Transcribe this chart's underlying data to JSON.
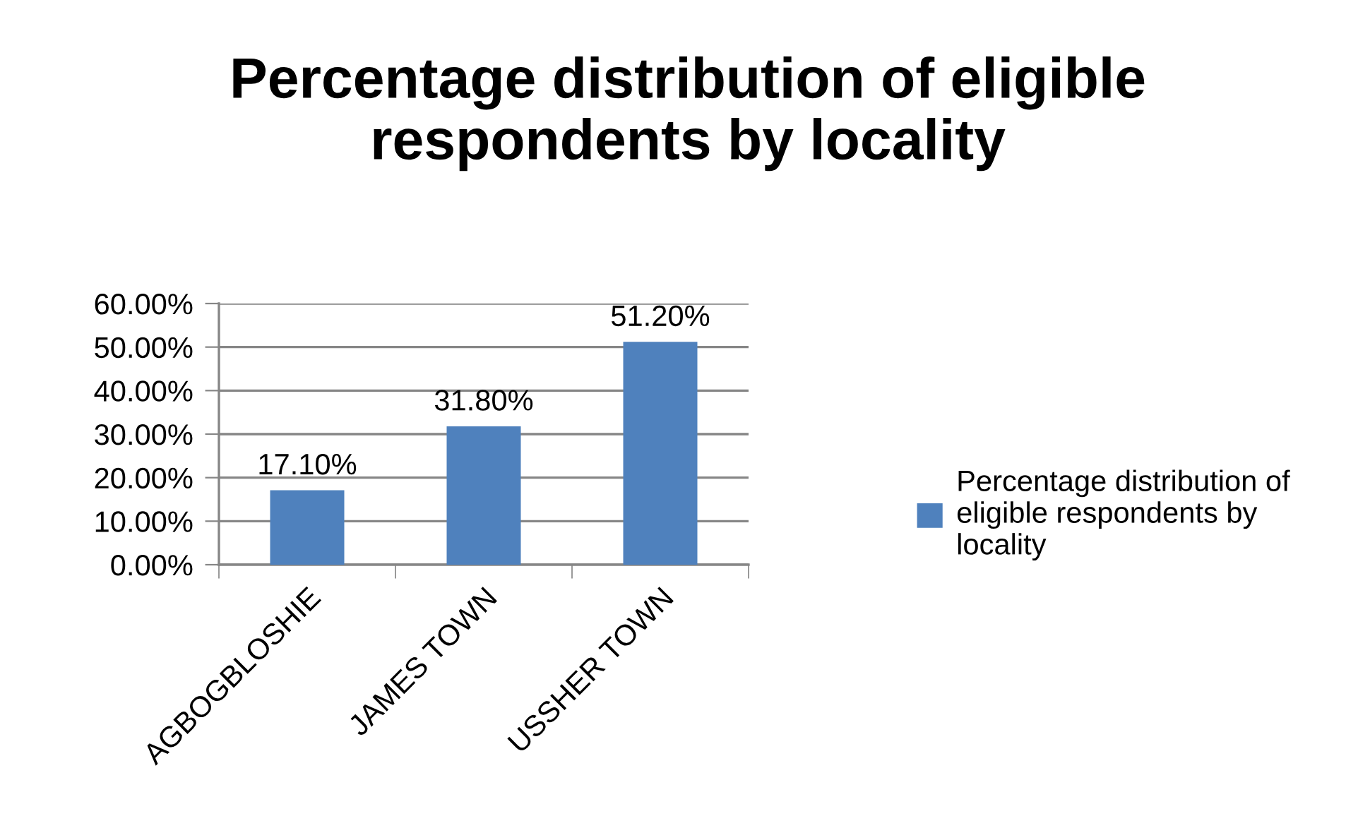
{
  "chart_data": {
    "type": "bar",
    "title": "Percentage distribution of eligible respondents by locality",
    "categories": [
      "AGBOGBLOSHIE",
      "JAMES TOWN",
      "USSHER TOWN"
    ],
    "series": [
      {
        "name": "Percentage distribution of eligible respondents by locality",
        "color": "#4f81bd",
        "values": [
          17.1,
          31.8,
          51.2
        ],
        "value_labels": [
          "17.10%",
          "31.80%",
          "51.20%"
        ]
      }
    ],
    "ylim": [
      0,
      60
    ],
    "yticks": [
      {
        "value": 0,
        "label": "0.00%"
      },
      {
        "value": 10,
        "label": "10.00%"
      },
      {
        "value": 20,
        "label": "20.00%"
      },
      {
        "value": 30,
        "label": "30.00%"
      },
      {
        "value": 40,
        "label": "40.00%"
      },
      {
        "value": 50,
        "label": "50.00%"
      },
      {
        "value": 60,
        "label": "60.00%"
      }
    ],
    "grid": "y",
    "legend": "right"
  }
}
